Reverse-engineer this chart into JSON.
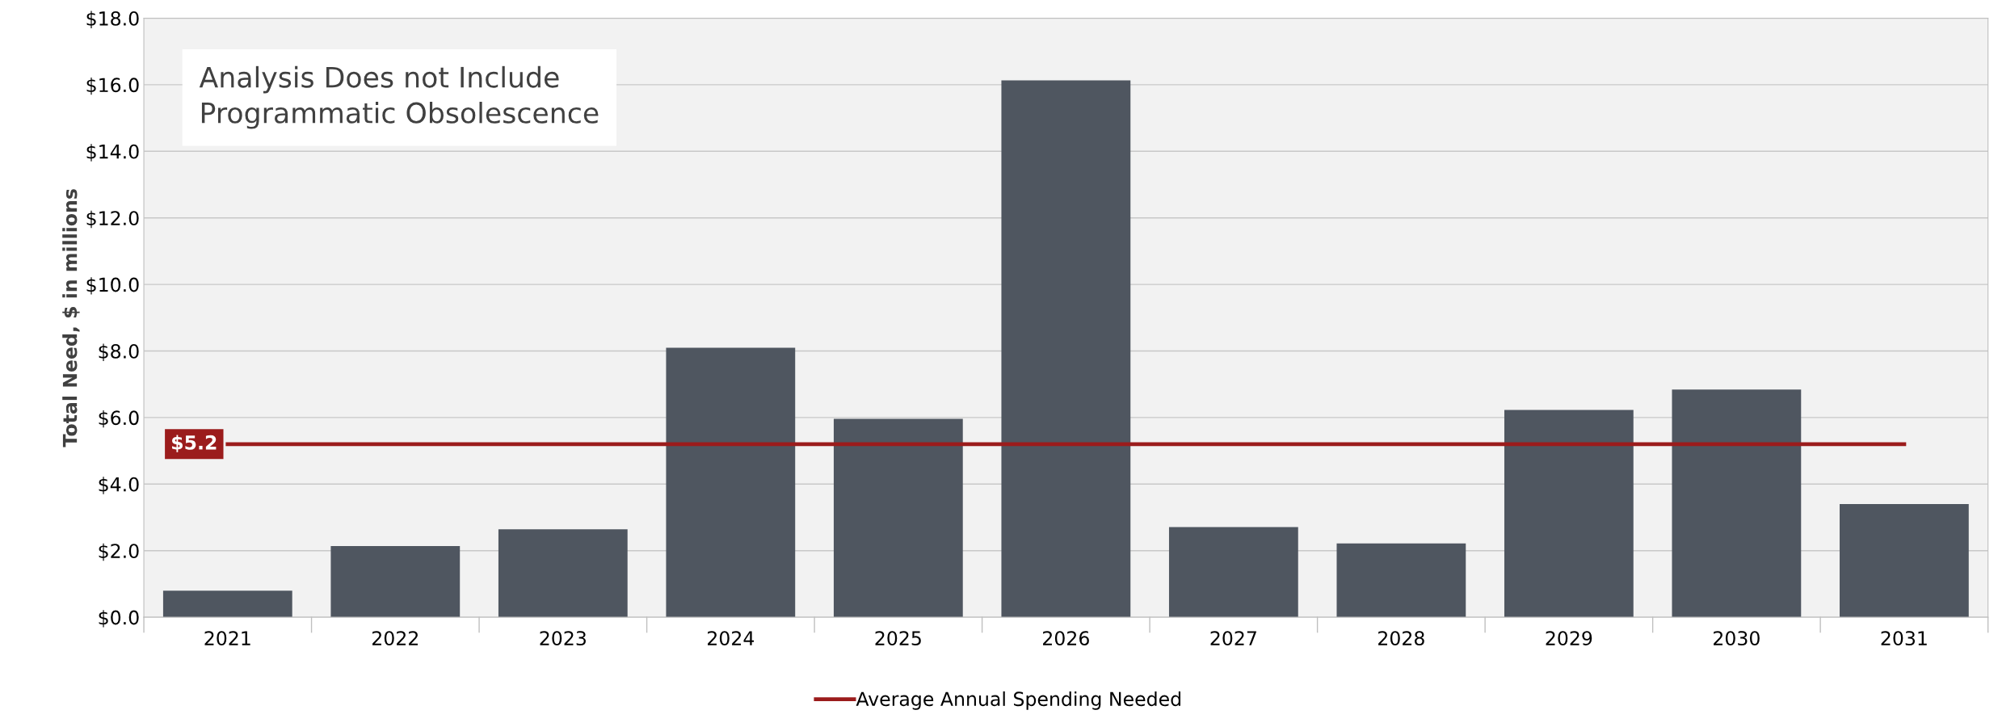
{
  "chart_data": {
    "type": "bar",
    "ylabel": "Total Need, $ in millions",
    "categories": [
      "2021",
      "2022",
      "2023",
      "2024",
      "2025",
      "2026",
      "2027",
      "2028",
      "2029",
      "2030",
      "2031"
    ],
    "series": [
      {
        "color": "#4f5660",
        "values": [
          0.8,
          2.14,
          2.64,
          8.1,
          5.96,
          16.13,
          2.71,
          2.22,
          6.23,
          6.84,
          3.4
        ]
      },
      {
        "type": "line",
        "name": "Average Annual Spending Needed",
        "color": "#9b1c1c",
        "values": [
          5.2,
          5.2,
          5.2,
          5.2,
          5.2,
          5.2,
          5.2,
          5.2,
          5.2,
          5.2,
          5.2
        ],
        "value_labels": [
          "$5.2",
          null,
          null,
          null,
          null,
          null,
          null,
          null,
          null,
          null,
          null
        ]
      }
    ],
    "ylim": [
      0,
      18
    ],
    "yticks": [
      {
        "value": 0,
        "label": "$0.0"
      },
      {
        "value": 2,
        "label": "$2.0"
      },
      {
        "value": 4,
        "label": "$4.0"
      },
      {
        "value": 6,
        "label": "$6.0"
      },
      {
        "value": 8,
        "label": "$8.0"
      },
      {
        "value": 10,
        "label": "$10.0"
      },
      {
        "value": 12,
        "label": "$12.0"
      },
      {
        "value": 14,
        "label": "$14.0"
      },
      {
        "value": 16,
        "label": "$16.0"
      },
      {
        "value": 18,
        "label": "$18.0"
      }
    ],
    "grid": "y",
    "legend": "bottom",
    "marker": "none",
    "line_style": "solid",
    "annotations": [
      "Analysis Does not Include\nProgrammatic Obsolescence"
    ]
  }
}
